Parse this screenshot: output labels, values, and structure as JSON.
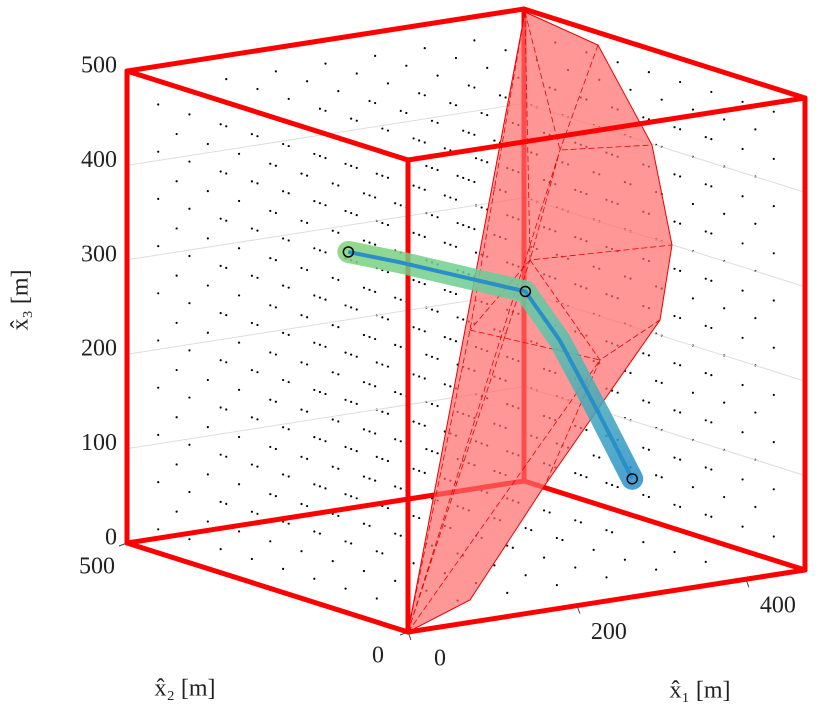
{
  "chart_data": {
    "type": "trajectory3d",
    "xlabel": "x̂₁ [m]",
    "ylabel": "x̂₂ [m]",
    "zlabel": "x̂₃ [m]",
    "xlim": [
      0,
      470
    ],
    "ylim": [
      0,
      500
    ],
    "zlim": [
      0,
      500
    ],
    "xticks": [
      0,
      200,
      400
    ],
    "yticks": [
      0,
      500
    ],
    "zticks": [
      0,
      100,
      200,
      300,
      400,
      500
    ],
    "box_color": "#ff0000",
    "series": [
      {
        "color": "#2a8fc9",
        "x": [
          129,
          170,
          218,
          272,
          286,
          310,
          332
        ],
        "y": [
          300,
          270,
          235,
          200,
          160,
          125,
          100
        ],
        "z": [
          328,
          317,
          302,
          285,
          239,
          163,
          97
        ]
      },
      {
        "color": "#000000",
        "x": [
          129,
          272,
          332
        ],
        "y": [
          300,
          200,
          100
        ],
        "z": [
          328,
          285,
          97
        ]
      }
    ]
  }
}
